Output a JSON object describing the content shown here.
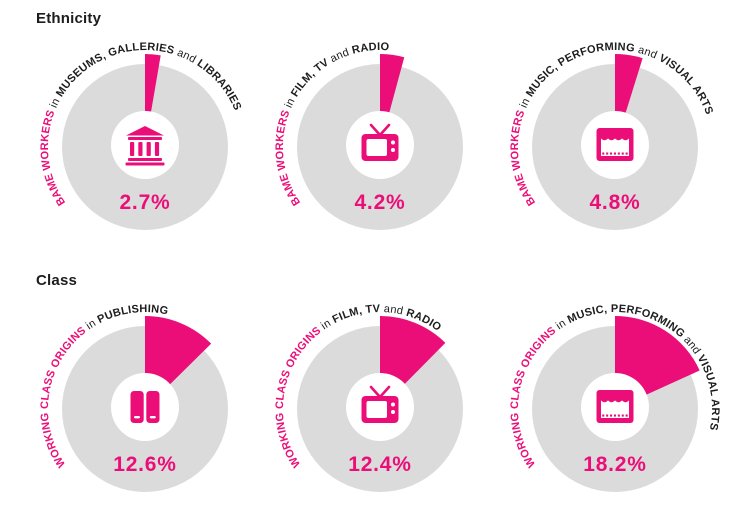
{
  "colors": {
    "accent": "#ec0e78",
    "ring_gray": "#dbdbdb",
    "text_dark": "#1d1d1f",
    "background": "#ffffff"
  },
  "chart_data": [
    {
      "type": "pie",
      "title": "Ethnicity",
      "unit": "%",
      "scale_max": 100,
      "charts": [
        {
          "label_text": "BAME WORKERS in MUSEUMS, GALLERIES and LIBRARIES",
          "label_segments": [
            {
              "text": "BAME WORKERS ",
              "style": "accent"
            },
            {
              "text": "in ",
              "style": "plain"
            },
            {
              "text": "MUSEUMS, GALLERIES ",
              "style": "bold"
            },
            {
              "text": "and ",
              "style": "plain"
            },
            {
              "text": "LIBRARIES",
              "style": "bold"
            }
          ],
          "value": 2.7,
          "display": "2.7%",
          "icon": "museum-icon"
        },
        {
          "label_text": "BAME WORKERS in FILM, TV and RADIO",
          "label_segments": [
            {
              "text": "BAME WORKERS ",
              "style": "accent"
            },
            {
              "text": "in ",
              "style": "plain"
            },
            {
              "text": "FILM, TV ",
              "style": "bold"
            },
            {
              "text": "and ",
              "style": "plain"
            },
            {
              "text": "RADIO",
              "style": "bold"
            }
          ],
          "value": 4.2,
          "display": "4.2%",
          "icon": "tv-icon"
        },
        {
          "label_text": "BAME WORKERS in MUSIC, PERFORMING and VISUAL ARTS",
          "label_segments": [
            {
              "text": "BAME WORKERS ",
              "style": "accent"
            },
            {
              "text": "in ",
              "style": "plain"
            },
            {
              "text": "MUSIC, PERFORMING ",
              "style": "bold"
            },
            {
              "text": "and ",
              "style": "plain"
            },
            {
              "text": "VISUAL ARTS",
              "style": "bold"
            }
          ],
          "value": 4.8,
          "display": "4.8%",
          "icon": "theater-icon"
        }
      ]
    },
    {
      "type": "pie",
      "title": "Class",
      "unit": "%",
      "scale_max": 100,
      "charts": [
        {
          "label_text": "WORKING CLASS ORIGINS in PUBLISHING",
          "label_segments": [
            {
              "text": "WORKING CLASS ORIGINS ",
              "style": "accent"
            },
            {
              "text": "in ",
              "style": "plain"
            },
            {
              "text": "PUBLISHING",
              "style": "bold"
            }
          ],
          "value": 12.6,
          "display": "12.6%",
          "icon": "books-icon"
        },
        {
          "label_text": "WORKING CLASS ORIGINS in FILM, TV and RADIO",
          "label_segments": [
            {
              "text": "WORKING CLASS ORIGINS ",
              "style": "accent"
            },
            {
              "text": "in ",
              "style": "plain"
            },
            {
              "text": "FILM, TV ",
              "style": "bold"
            },
            {
              "text": "and ",
              "style": "plain"
            },
            {
              "text": "RADIO",
              "style": "bold"
            }
          ],
          "value": 12.4,
          "display": "12.4%",
          "icon": "tv-icon"
        },
        {
          "label_text": "WORKING CLASS ORIGINS in MUSIC, PERFORMING and VISUAL ARTS",
          "label_segments": [
            {
              "text": "WORKING CLASS ORIGINS ",
              "style": "accent"
            },
            {
              "text": "in ",
              "style": "plain"
            },
            {
              "text": "MUSIC, PERFORMING ",
              "style": "bold"
            },
            {
              "text": "and ",
              "style": "plain"
            },
            {
              "text": "VISUAL ARTS",
              "style": "bold"
            }
          ],
          "value": 18.2,
          "display": "18.2%",
          "icon": "theater-icon"
        }
      ]
    }
  ]
}
